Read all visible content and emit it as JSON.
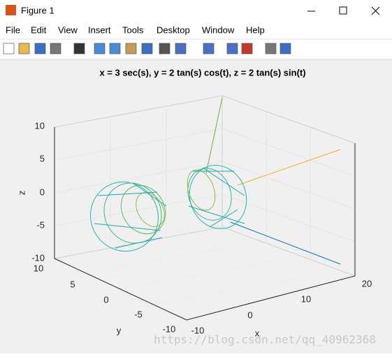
{
  "window": {
    "title": "Figure 1"
  },
  "menu": [
    "File",
    "Edit",
    "View",
    "Insert",
    "Tools",
    "Desktop",
    "Window",
    "Help"
  ],
  "axes": {
    "title": "x = 3 sec(s), y = 2 tan(s) cos(t), z = 2 tan(s) sin(t)",
    "xlabel": "x",
    "ylabel": "y",
    "zlabel": "z",
    "xticks": [
      -10,
      0,
      10,
      20
    ],
    "yticks": [
      10,
      5,
      0,
      -5,
      -10
    ],
    "zticks": [
      10,
      5,
      0,
      -5,
      -10
    ]
  },
  "watermark": "https://blog.csdn.net/qq_40962368"
}
